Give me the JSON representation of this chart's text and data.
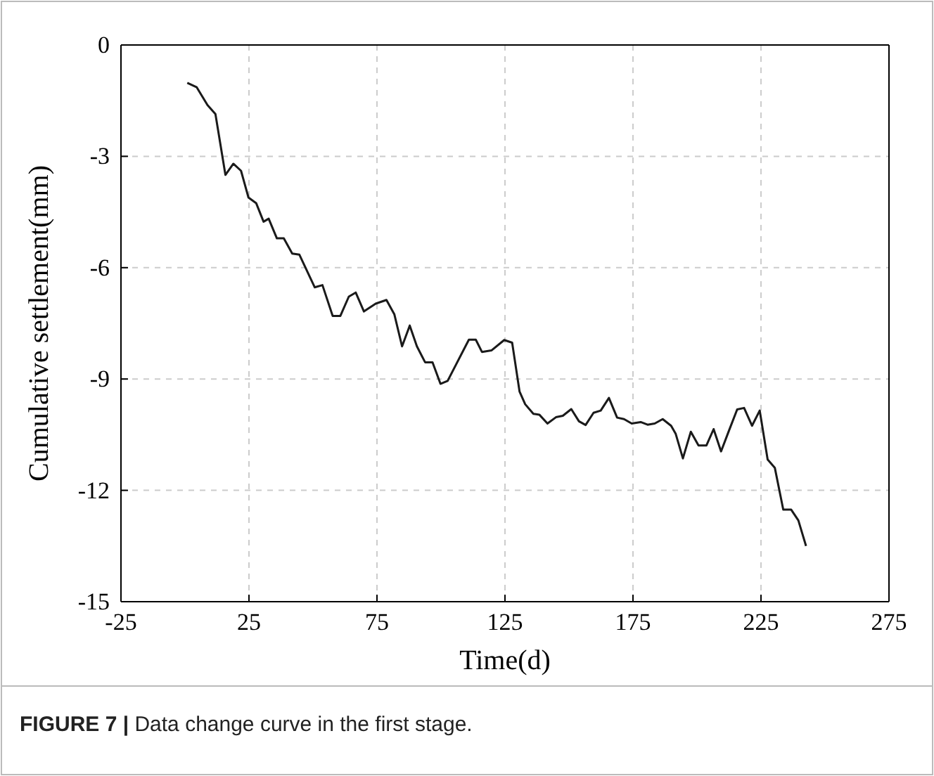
{
  "chart_data": {
    "type": "line",
    "xlabel": "Time(d)",
    "ylabel": "Cumulative settlement(mm)",
    "xlim": [
      -25,
      275
    ],
    "xticks": [
      -25,
      25,
      75,
      125,
      175,
      225,
      275
    ],
    "ylim": [
      -15,
      0
    ],
    "yticks": [
      -15,
      -12,
      -9,
      -6,
      -3,
      0
    ],
    "grid": true,
    "marker": "none",
    "line_style": "solid",
    "annotations": [
      "FIGURE 7 | Data change curve in the first stage."
    ],
    "series": [
      {
        "color": "#1a1a1a",
        "x": [
          0.9,
          4.6,
          8.8,
          11.9,
          15.8,
          18.9,
          21.9,
          24.8,
          27.8,
          30.7,
          32.7,
          35.9,
          38.6,
          41.9,
          44.7,
          50.7,
          53.7,
          57.7,
          60.7,
          64.0,
          66.7,
          69.9,
          74.5,
          78.7,
          81.8,
          84.8,
          87.8,
          90.6,
          93.8,
          96.7,
          99.8,
          102.6,
          110.9,
          113.6,
          116.0,
          119.7,
          124.7,
          127.8,
          130.7,
          132.9,
          136.1,
          138.4,
          141.6,
          144.9,
          147.6,
          150.9,
          153.9,
          156.5,
          159.6,
          162.4,
          165.6,
          168.8,
          171.5,
          174.5,
          178.0,
          180.7,
          183.5,
          186.6,
          189.9,
          191.7,
          194.5,
          197.6,
          200.6,
          203.7,
          206.5,
          209.4,
          212.5,
          215.7,
          218.4,
          221.5,
          224.5,
          227.6,
          230.4,
          233.7,
          236.8,
          239.6,
          242.6
        ],
        "values": [
          -1.02,
          -1.14,
          -1.62,
          -1.86,
          -3.5,
          -3.2,
          -3.39,
          -4.11,
          -4.26,
          -4.76,
          -4.68,
          -5.21,
          -5.21,
          -5.62,
          -5.65,
          -6.53,
          -6.47,
          -7.3,
          -7.3,
          -6.78,
          -6.67,
          -7.18,
          -6.97,
          -6.87,
          -7.26,
          -8.12,
          -7.56,
          -8.12,
          -8.55,
          -8.55,
          -9.13,
          -9.05,
          -7.94,
          -7.94,
          -8.27,
          -8.23,
          -7.95,
          -8.02,
          -9.34,
          -9.68,
          -9.94,
          -9.96,
          -10.2,
          -10.03,
          -9.99,
          -9.81,
          -10.14,
          -10.24,
          -9.91,
          -9.85,
          -9.51,
          -10.04,
          -10.08,
          -10.2,
          -10.16,
          -10.23,
          -10.2,
          -10.08,
          -10.26,
          -10.48,
          -11.14,
          -10.42,
          -10.79,
          -10.79,
          -10.35,
          -10.95,
          -10.39,
          -9.82,
          -9.78,
          -10.26,
          -9.85,
          -11.17,
          -11.39,
          -12.52,
          -12.52,
          -12.81,
          -13.5
        ]
      }
    ]
  }
}
